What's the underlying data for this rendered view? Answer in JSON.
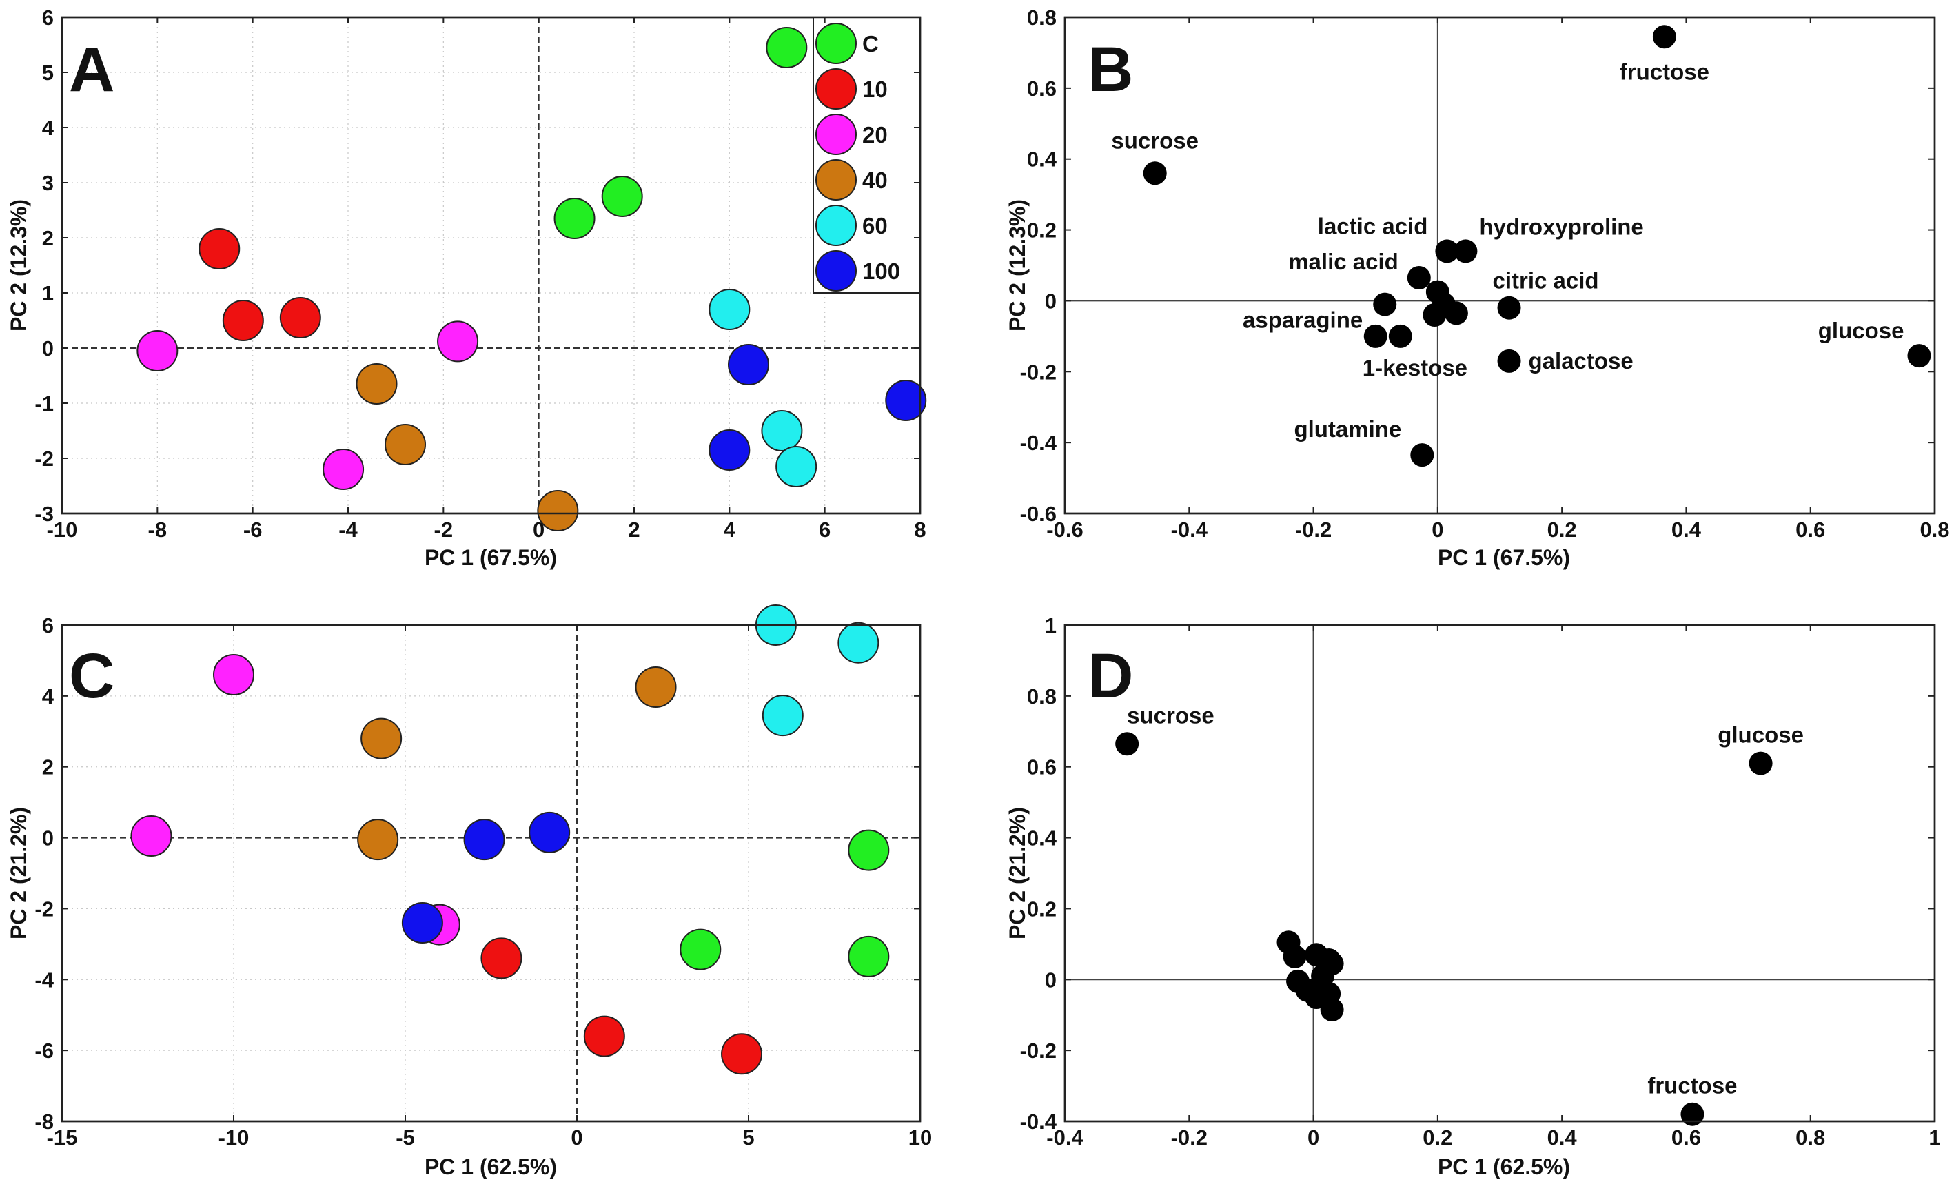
{
  "chart_data": [
    {
      "panel": "A",
      "type": "scatter",
      "xlabel": "PC 1 (67.5%)",
      "ylabel": "PC 2 (12.3%)",
      "xlim": [
        -10,
        8
      ],
      "ylim": [
        -3,
        6
      ],
      "xticks": [
        -10,
        -8,
        -6,
        -4,
        -2,
        0,
        2,
        4,
        6,
        8
      ],
      "yticks": [
        -3,
        -2,
        -1,
        0,
        1,
        2,
        3,
        4,
        5,
        6
      ],
      "grid": true,
      "legend_position": "top-right",
      "series": [
        {
          "name": "C",
          "color": "#22ee22",
          "points": [
            [
              5.2,
              5.45
            ],
            [
              0.75,
              2.35
            ],
            [
              1.75,
              2.75
            ]
          ]
        },
        {
          "name": "10",
          "color": "#ee1111",
          "points": [
            [
              -6.7,
              1.8
            ],
            [
              -6.2,
              0.5
            ],
            [
              -5.0,
              0.55
            ]
          ]
        },
        {
          "name": "20",
          "color": "#ff22ff",
          "points": [
            [
              -8.0,
              -0.05
            ],
            [
              -1.7,
              0.12
            ],
            [
              -4.1,
              -2.2
            ]
          ]
        },
        {
          "name": "40",
          "color": "#cc7711",
          "points": [
            [
              -3.4,
              -0.65
            ],
            [
              -2.8,
              -1.75
            ],
            [
              0.4,
              -2.95
            ]
          ]
        },
        {
          "name": "60",
          "color": "#22eeee",
          "points": [
            [
              4.0,
              0.7
            ],
            [
              5.1,
              -1.5
            ],
            [
              5.4,
              -2.15
            ]
          ]
        },
        {
          "name": "100",
          "color": "#1111ee",
          "points": [
            [
              4.4,
              -0.3
            ],
            [
              4.0,
              -1.85
            ],
            [
              7.7,
              -0.95
            ]
          ]
        }
      ]
    },
    {
      "panel": "B",
      "type": "scatter",
      "xlabel": "PC 1 (67.5%)",
      "ylabel": "PC 2 (12.3%)",
      "xlim": [
        -0.6,
        0.8
      ],
      "ylim": [
        -0.6,
        0.8
      ],
      "xticks": [
        -0.6,
        -0.4,
        -0.2,
        0,
        0.2,
        0.4,
        0.6,
        0.8
      ],
      "yticks": [
        -0.6,
        -0.4,
        -0.2,
        0,
        0.2,
        0.4,
        0.6,
        0.8
      ],
      "grid": false,
      "points": [
        {
          "label": "fructose",
          "x": 0.365,
          "y": 0.745
        },
        {
          "label": "sucrose",
          "x": -0.455,
          "y": 0.36
        },
        {
          "label": "lactic acid",
          "x": 0.015,
          "y": 0.14
        },
        {
          "label": "hydroxyproline",
          "x": 0.045,
          "y": 0.14
        },
        {
          "label": "malic acid",
          "x": -0.03,
          "y": 0.065
        },
        {
          "label": "citric acid",
          "x": 0.115,
          "y": -0.02
        },
        {
          "label": "asparagine",
          "x": -0.085,
          "y": -0.01
        },
        {
          "label": "glucose",
          "x": 0.775,
          "y": -0.155
        },
        {
          "label": "1-kestose",
          "x": -0.06,
          "y": -0.1
        },
        {
          "label": "galactose",
          "x": 0.115,
          "y": -0.17
        },
        {
          "label": "glutamine",
          "x": -0.025,
          "y": -0.435
        },
        {
          "label": "",
          "x": -0.1,
          "y": -0.1
        },
        {
          "label": "",
          "x": 0.0,
          "y": 0.025
        },
        {
          "label": "",
          "x": 0.01,
          "y": -0.01
        },
        {
          "label": "",
          "x": -0.005,
          "y": -0.04
        },
        {
          "label": "",
          "x": 0.03,
          "y": -0.035
        }
      ]
    },
    {
      "panel": "C",
      "type": "scatter",
      "xlabel": "PC 1 (62.5%)",
      "ylabel": "PC 2 (21.2%)",
      "xlim": [
        -15,
        10
      ],
      "ylim": [
        -8,
        6
      ],
      "xticks": [
        -15,
        -10,
        -5,
        0,
        5,
        10
      ],
      "yticks": [
        -8,
        -6,
        -4,
        -2,
        0,
        2,
        4,
        6
      ],
      "grid": true,
      "series": [
        {
          "name": "C",
          "color": "#22ee22",
          "points": [
            [
              8.5,
              -0.35
            ],
            [
              3.6,
              -3.15
            ],
            [
              8.5,
              -3.35
            ]
          ]
        },
        {
          "name": "10",
          "color": "#ee1111",
          "points": [
            [
              -2.2,
              -3.4
            ],
            [
              0.8,
              -5.6
            ],
            [
              4.8,
              -6.1
            ]
          ]
        },
        {
          "name": "20",
          "color": "#ff22ff",
          "points": [
            [
              -10.0,
              4.6
            ],
            [
              -12.4,
              0.05
            ],
            [
              -4.0,
              -2.45
            ]
          ]
        },
        {
          "name": "40",
          "color": "#cc7711",
          "points": [
            [
              2.3,
              4.25
            ],
            [
              -5.7,
              2.8
            ],
            [
              -5.8,
              -0.05
            ]
          ]
        },
        {
          "name": "60",
          "color": "#22eeee",
          "points": [
            [
              5.8,
              6.0
            ],
            [
              8.2,
              5.5
            ],
            [
              6.0,
              3.45
            ]
          ]
        },
        {
          "name": "100",
          "color": "#1111ee",
          "points": [
            [
              -2.7,
              -0.05
            ],
            [
              -0.8,
              0.15
            ],
            [
              -4.5,
              -2.4
            ]
          ]
        }
      ]
    },
    {
      "panel": "D",
      "type": "scatter",
      "xlabel": "PC 1 (62.5%)",
      "ylabel": "PC 2 (21.2%)",
      "xlim": [
        -0.4,
        1
      ],
      "ylim": [
        -0.4,
        1
      ],
      "xticks": [
        -0.4,
        -0.2,
        0,
        0.2,
        0.4,
        0.6,
        0.8,
        1
      ],
      "yticks": [
        -0.4,
        -0.2,
        0,
        0.2,
        0.4,
        0.6,
        0.8,
        1
      ],
      "grid": false,
      "points": [
        {
          "label": "sucrose",
          "x": -0.3,
          "y": 0.665
        },
        {
          "label": "glucose",
          "x": 0.72,
          "y": 0.61
        },
        {
          "label": "fructose",
          "x": 0.61,
          "y": -0.38
        },
        {
          "label": "",
          "x": -0.04,
          "y": 0.105
        },
        {
          "label": "",
          "x": -0.03,
          "y": 0.065
        },
        {
          "label": "",
          "x": 0.005,
          "y": 0.07
        },
        {
          "label": "",
          "x": 0.025,
          "y": 0.055
        },
        {
          "label": "",
          "x": 0.03,
          "y": 0.045
        },
        {
          "label": "",
          "x": -0.025,
          "y": -0.005
        },
        {
          "label": "",
          "x": 0.015,
          "y": 0.01
        },
        {
          "label": "",
          "x": -0.01,
          "y": -0.03
        },
        {
          "label": "",
          "x": 0.005,
          "y": -0.05
        },
        {
          "label": "",
          "x": 0.025,
          "y": -0.04
        },
        {
          "label": "",
          "x": 0.03,
          "y": -0.085
        }
      ]
    }
  ]
}
